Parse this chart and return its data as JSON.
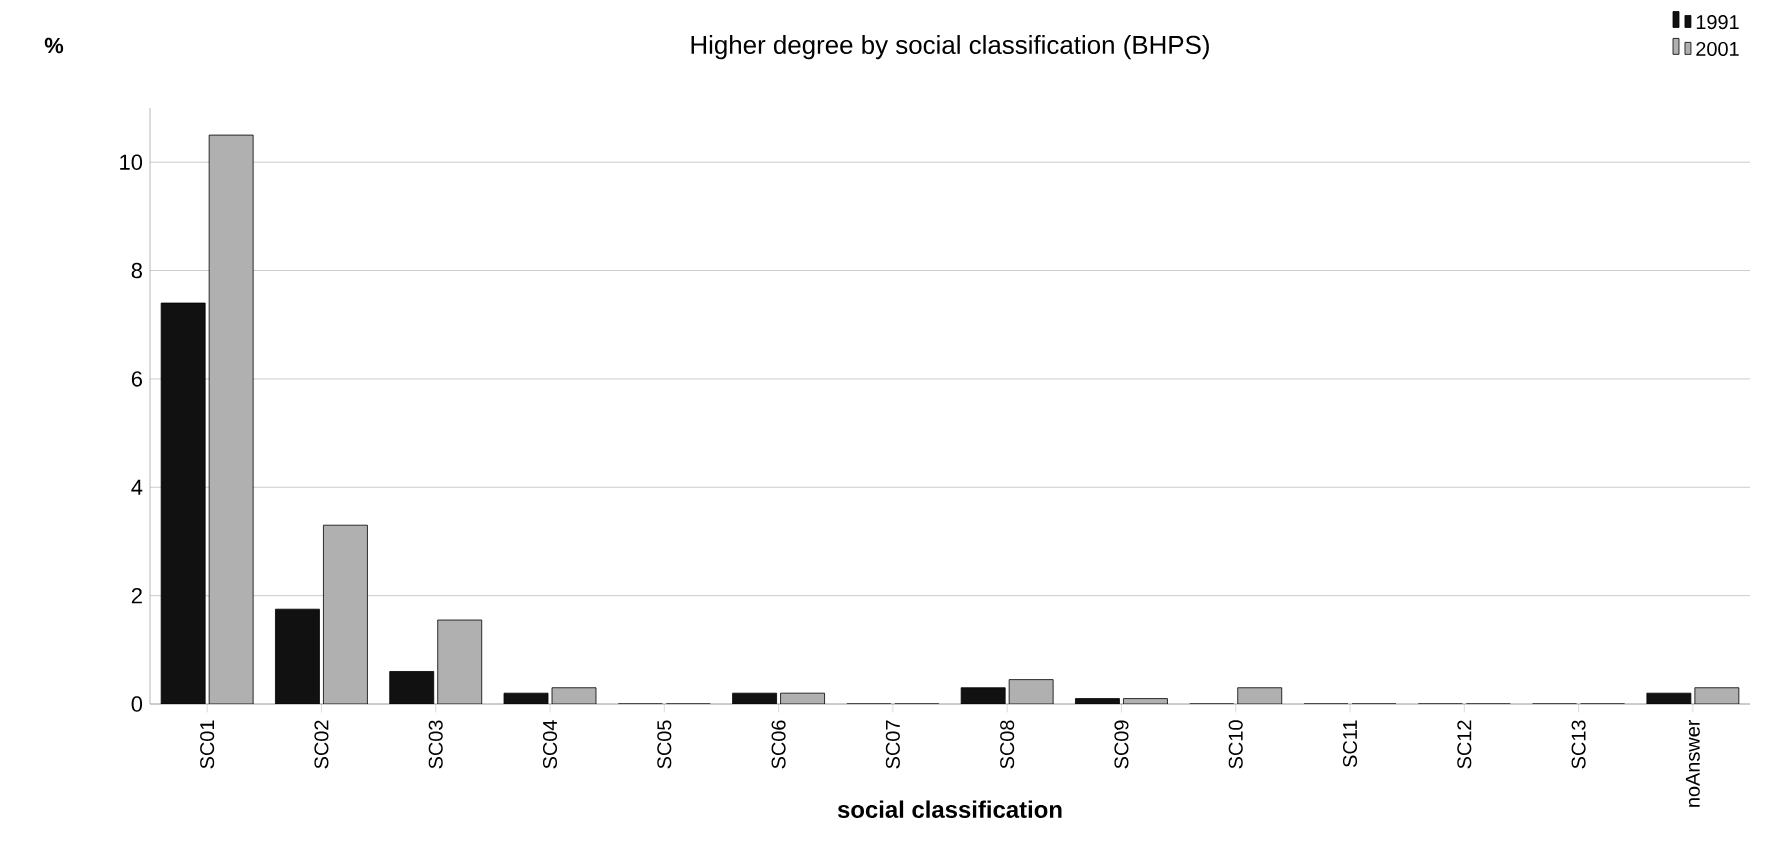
{
  "chart_data": {
    "type": "bar",
    "title": "Higher degree by social classification (BHPS)",
    "xlabel": "social classification",
    "ylabel": "%",
    "categories": [
      "SC01",
      "SC02",
      "SC03",
      "SC04",
      "SC05",
      "SC06",
      "SC07",
      "SC08",
      "SC09",
      "SC10",
      "SC11",
      "SC12",
      "SC13",
      "noAnswer"
    ],
    "series": [
      {
        "name": "1991",
        "color": "#111111",
        "values": [
          7.4,
          1.75,
          0.6,
          0.2,
          0,
          0.2,
          0,
          0.3,
          0.1,
          0,
          0,
          0,
          0,
          0.2
        ]
      },
      {
        "name": "2001",
        "color": "#b0b0b0",
        "values": [
          10.5,
          3.3,
          1.55,
          0.3,
          0,
          0.2,
          0,
          0.45,
          0.1,
          0.3,
          0,
          0,
          0,
          0.3
        ]
      }
    ],
    "ylim": [
      0,
      11
    ],
    "yticks": [
      0,
      2,
      4,
      6,
      8,
      10
    ],
    "grid": "y",
    "legend": "top right"
  }
}
